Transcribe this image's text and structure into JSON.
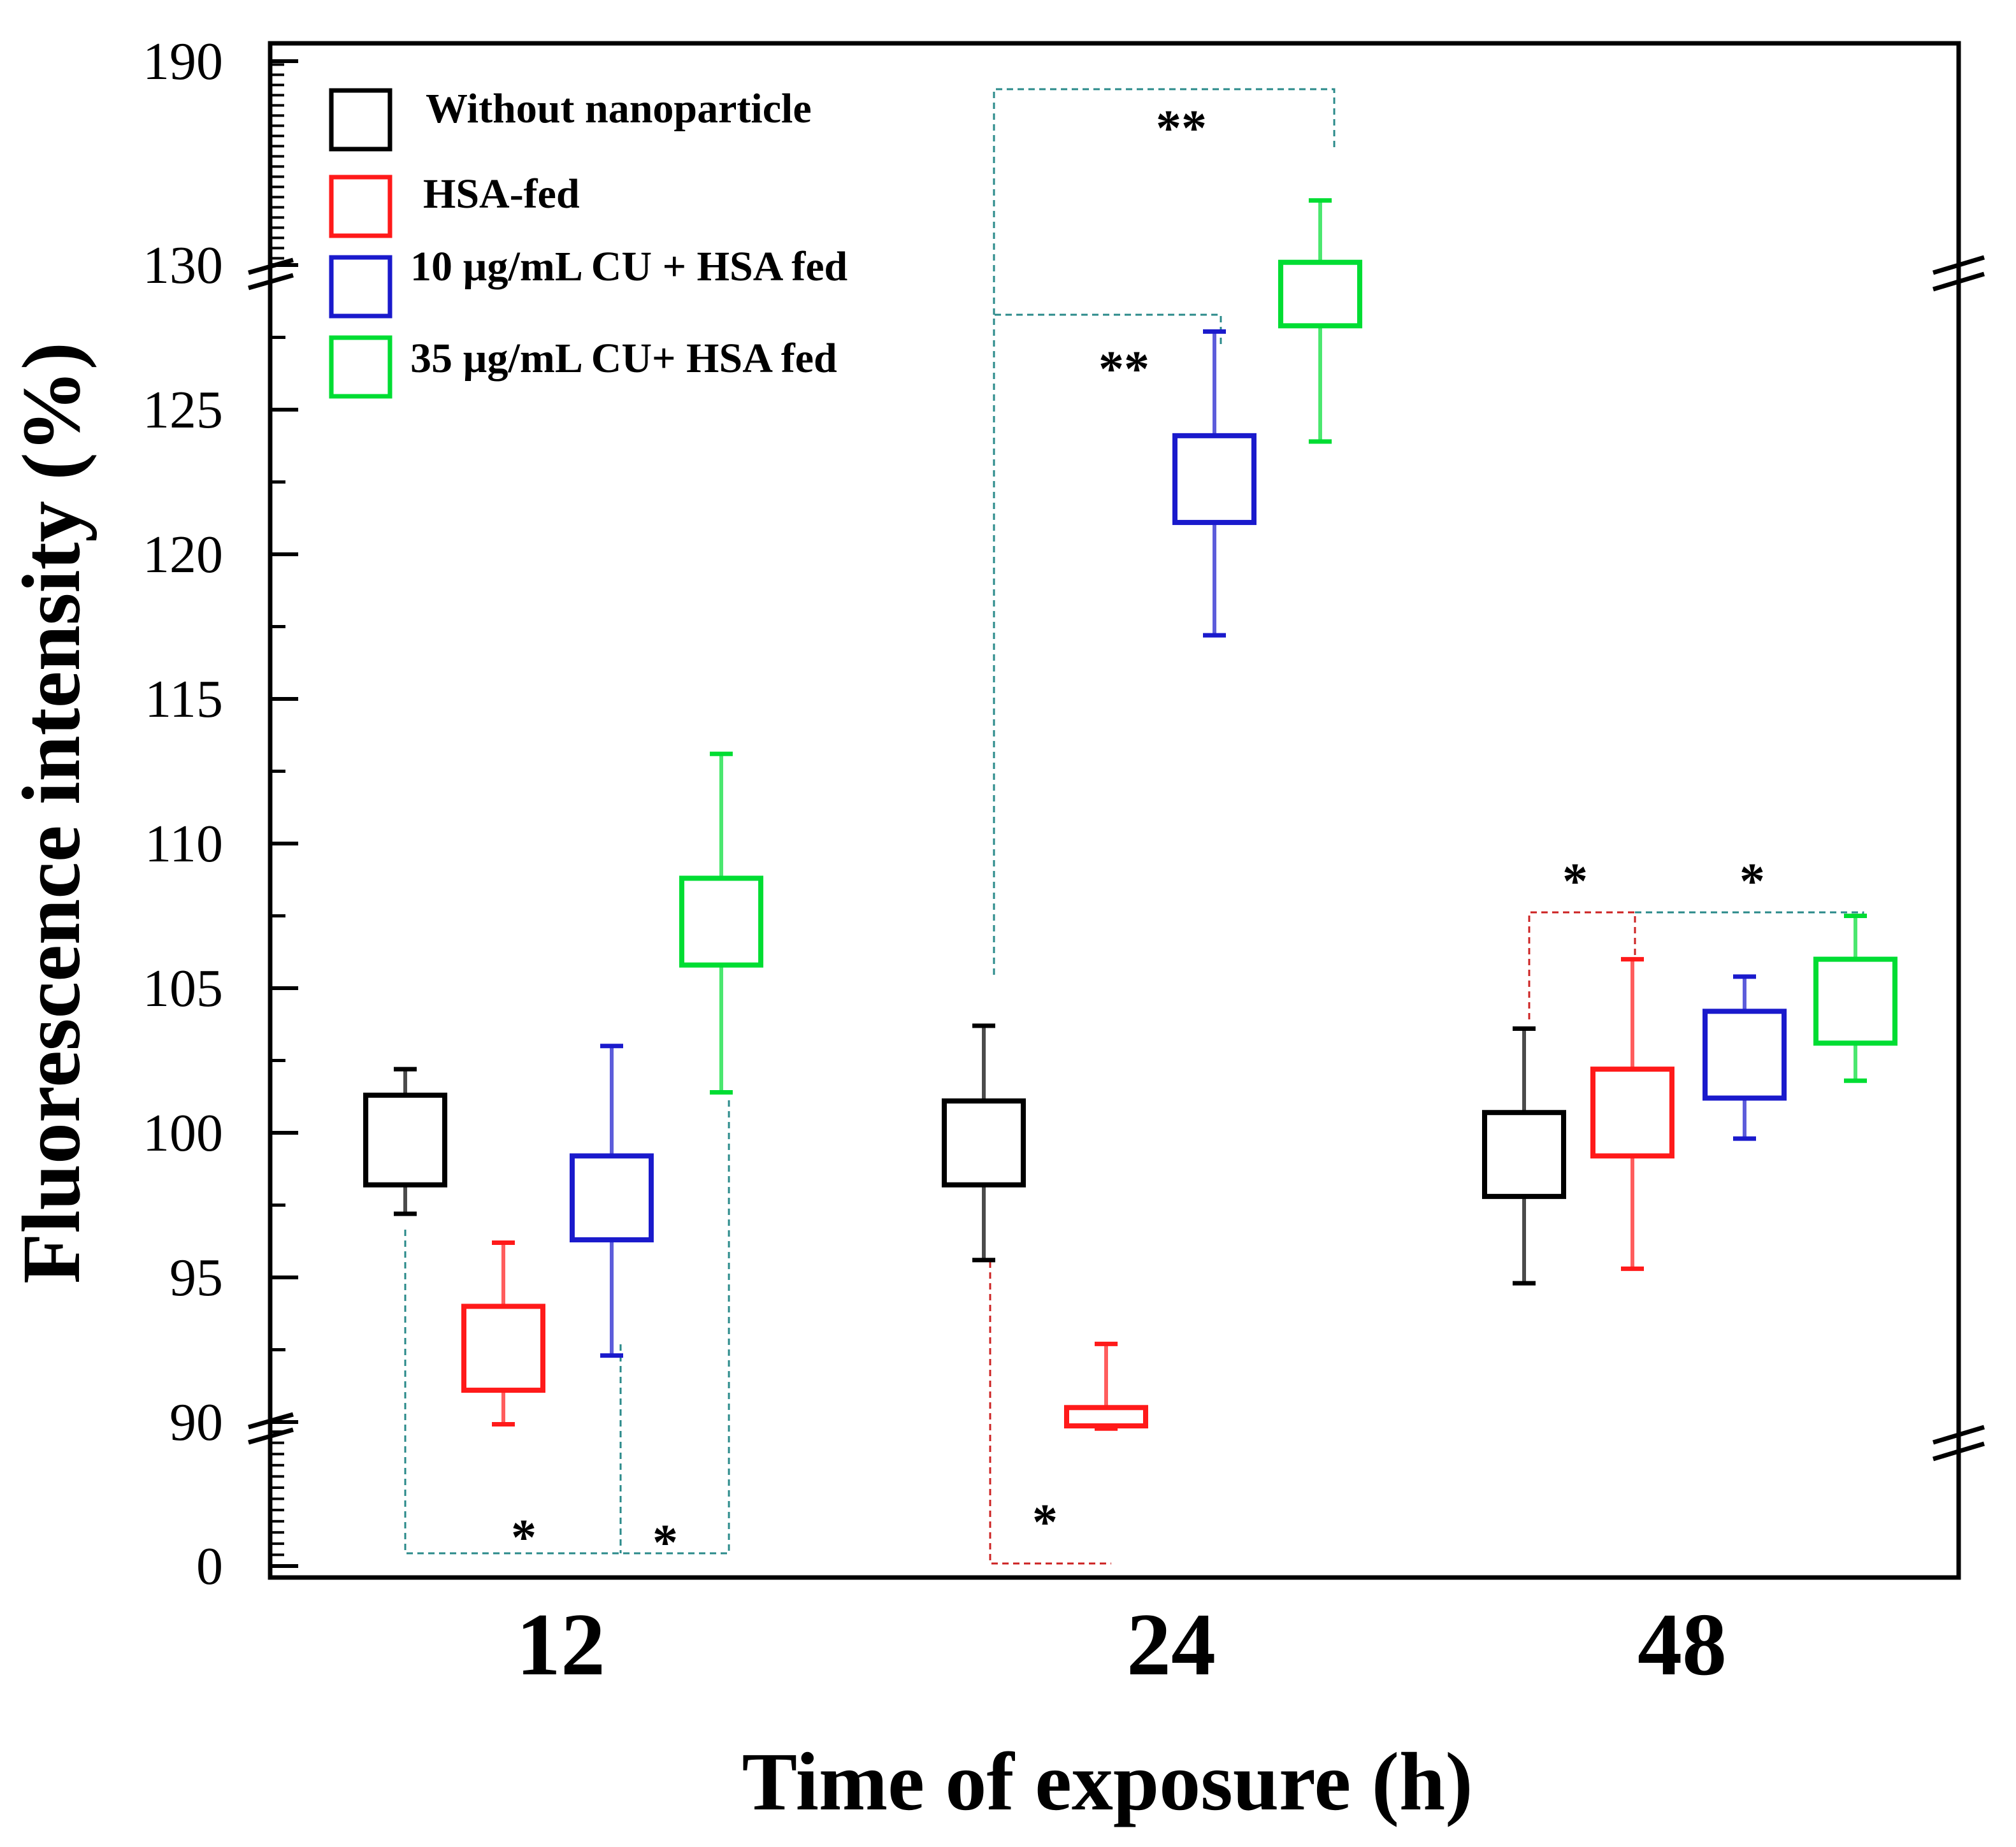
{
  "chart_data": {
    "type": "box",
    "xlabel": "Time of exposure (h)",
    "ylabel": "Fluorescence intensity (%)",
    "categories": [
      "12",
      "24",
      "48"
    ],
    "y_axis": {
      "segments": [
        [
          0,
          0
        ],
        [
          90,
          130
        ],
        [
          130,
          190
        ]
      ],
      "tick_labels": [
        "0",
        "90",
        "95",
        "100",
        "105",
        "110",
        "115",
        "120",
        "125",
        "130",
        "190"
      ],
      "breaks": [
        90,
        130
      ]
    },
    "series": [
      {
        "name": "Without nanoparticle",
        "color": "#000000",
        "boxes": [
          {
            "category": "12",
            "box_low": 98.2,
            "box_high": 101.3,
            "whisker_low": 97.2,
            "whisker_high": 102.2
          },
          {
            "category": "24",
            "box_low": 98.2,
            "box_high": 101.1,
            "whisker_low": 95.6,
            "whisker_high": 103.7
          },
          {
            "category": "48",
            "box_low": 97.8,
            "box_high": 100.7,
            "whisker_low": 94.8,
            "whisker_high": 103.6
          }
        ]
      },
      {
        "name": "HSA-fed",
        "color": "#ff1a1a",
        "boxes": [
          {
            "category": "12",
            "box_low": 91.1,
            "box_high": 94.0,
            "whisker_low": 88.6,
            "whisker_high": 96.2
          },
          {
            "category": "24",
            "box_low": 87.6,
            "box_high": 90.5,
            "whisker_low": 85.9,
            "whisker_high": 92.7
          },
          {
            "category": "48",
            "box_low": 99.2,
            "box_high": 102.2,
            "whisker_low": 95.3,
            "whisker_high": 106.0
          }
        ]
      },
      {
        "name": "10 µg/mL CU + HSA fed",
        "color": "#1a1acc",
        "boxes": [
          {
            "category": "12",
            "box_low": 96.3,
            "box_high": 99.2,
            "whisker_low": 92.3,
            "whisker_high": 103.0
          },
          {
            "category": "24",
            "box_low": 121.1,
            "box_high": 124.1,
            "whisker_low": 117.2,
            "whisker_high": 127.7
          }
        ]
      },
      {
        "name": "35 µg/mL CU+ HSA fed",
        "color": "#00dd33",
        "boxes": [
          {
            "category": "12",
            "box_low": 105.8,
            "box_high": 108.8,
            "whisker_low": 101.4,
            "whisker_high": 113.1
          },
          {
            "category": "24",
            "box_low": 127.9,
            "box_high": 130.8,
            "whisker_low": 123.9,
            "whisker_high": 149.0
          }
        ]
      }
    ],
    "extra_48h": [
      {
        "name": "10 µg/mL CU + HSA fed",
        "box_low": 101.2,
        "box_high": 104.2,
        "whisker_low": 99.8,
        "whisker_high": 105.4
      },
      {
        "name": "35 µg/mL CU+ HSA fed",
        "box_low": 103.1,
        "box_high": 106.0,
        "whisker_low": 101.8,
        "whisker_high": 107.5
      }
    ],
    "significance": [
      {
        "label": "*",
        "category": "12",
        "between": [
          "Without nanoparticle",
          "10 µg/mL CU + HSA fed"
        ]
      },
      {
        "label": "*",
        "category": "12",
        "between": [
          "10 µg/mL CU + HSA fed",
          "35 µg/mL CU+ HSA fed"
        ]
      },
      {
        "label": "*",
        "category": "24",
        "between": [
          "Without nanoparticle",
          "HSA-fed"
        ]
      },
      {
        "label": "**",
        "category": "24",
        "between": [
          "Without nanoparticle",
          "10 µg/mL CU + HSA fed"
        ]
      },
      {
        "label": "**",
        "category": "24",
        "between": [
          "Without nanoparticle",
          "35 µg/mL CU+ HSA fed"
        ]
      },
      {
        "label": "*",
        "category": "48",
        "between": [
          "Without nanoparticle",
          "HSA-fed"
        ]
      },
      {
        "label": "*",
        "category": "48",
        "between": [
          "HSA-fed",
          "35 µg/mL CU+ HSA fed"
        ]
      }
    ],
    "legend_position": "top-left"
  }
}
